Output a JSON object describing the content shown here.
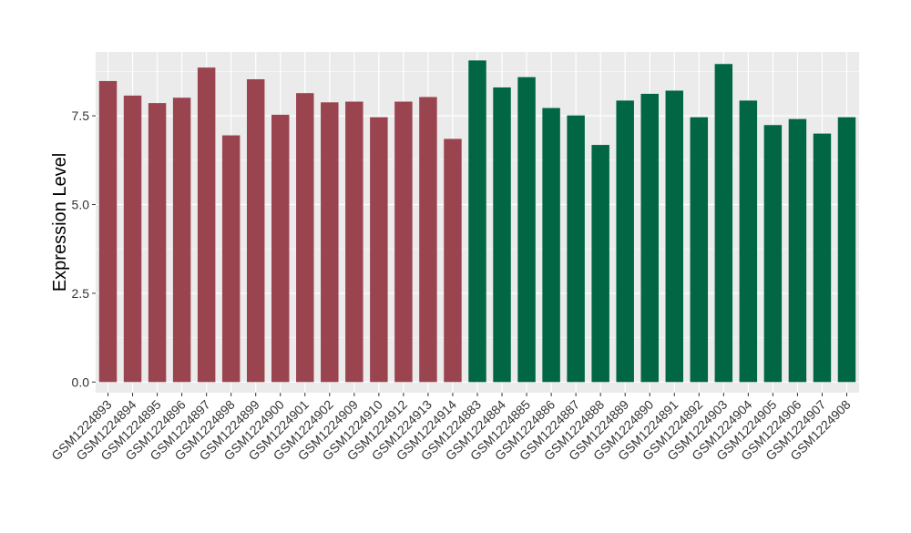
{
  "chart_data": {
    "type": "bar",
    "title": "",
    "xlabel": "",
    "ylabel": "Expression Level",
    "ylim": [
      -0.3,
      9.3
    ],
    "yticks": [
      0.0,
      2.5,
      5.0,
      7.5
    ],
    "ytick_labels": [
      "0.0",
      "2.5",
      "5.0",
      "7.5"
    ],
    "grid": true,
    "legend": "none",
    "colors": {
      "group1": "#9A4450",
      "group2": "#006644",
      "panel_bg": "#EBEBEB",
      "grid_major": "#FFFFFF"
    },
    "categories": [
      "GSM1224893",
      "GSM1224894",
      "GSM1224895",
      "GSM1224896",
      "GSM1224897",
      "GSM1224898",
      "GSM1224899",
      "GSM1224900",
      "GSM1224901",
      "GSM1224902",
      "GSM1224909",
      "GSM1224910",
      "GSM1224912",
      "GSM1224913",
      "GSM1224914",
      "GSM1224883",
      "GSM1224884",
      "GSM1224885",
      "GSM1224886",
      "GSM1224887",
      "GSM1224888",
      "GSM1224889",
      "GSM1224890",
      "GSM1224891",
      "GSM1224892",
      "GSM1224903",
      "GSM1224904",
      "GSM1224905",
      "GSM1224906",
      "GSM1224907",
      "GSM1224908"
    ],
    "values": [
      8.48,
      8.07,
      7.86,
      8.01,
      8.86,
      6.95,
      8.53,
      7.53,
      8.14,
      7.88,
      7.9,
      7.46,
      7.9,
      8.03,
      6.85,
      9.06,
      8.3,
      8.59,
      7.72,
      7.51,
      6.68,
      7.93,
      8.12,
      8.21,
      7.46,
      8.96,
      7.93,
      7.24,
      7.41,
      7.0,
      7.46
    ],
    "groups": [
      1,
      1,
      1,
      1,
      1,
      1,
      1,
      1,
      1,
      1,
      1,
      1,
      1,
      1,
      1,
      2,
      2,
      2,
      2,
      2,
      2,
      2,
      2,
      2,
      2,
      2,
      2,
      2,
      2,
      2,
      2
    ]
  }
}
